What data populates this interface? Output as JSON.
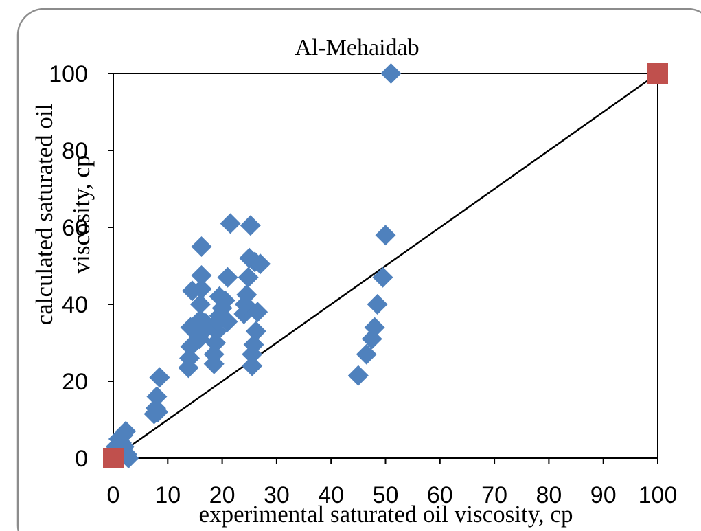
{
  "chart_data": {
    "type": "scatter",
    "title": "Al-Mehaidab",
    "xlabel": "experimental  saturated oil viscosity, cp",
    "ylabel_lines": [
      "calculated saturated oil",
      "viscosity, cp"
    ],
    "xlim": [
      0,
      100
    ],
    "ylim": [
      0,
      100
    ],
    "x_ticks": [
      0,
      10,
      20,
      30,
      40,
      50,
      60,
      70,
      80,
      90,
      100
    ],
    "y_ticks": [
      0,
      20,
      40,
      60,
      80,
      100
    ],
    "grid": false,
    "legend": "none",
    "series": [
      {
        "marker": "diamond",
        "color": "#4f81bd",
        "points": [
          [
            0.2,
            1
          ],
          [
            0.5,
            3
          ],
          [
            0.8,
            0.5
          ],
          [
            1.0,
            5
          ],
          [
            1.2,
            2
          ],
          [
            1.5,
            4
          ],
          [
            1.8,
            6
          ],
          [
            2.0,
            3
          ],
          [
            2.3,
            7
          ],
          [
            2.5,
            1
          ],
          [
            2.8,
            0
          ],
          [
            7.5,
            11.5
          ],
          [
            7.8,
            13
          ],
          [
            8.0,
            16
          ],
          [
            8.2,
            12
          ],
          [
            8.5,
            21
          ],
          [
            13.8,
            23.5
          ],
          [
            14.0,
            26
          ],
          [
            14.2,
            29
          ],
          [
            14.2,
            34
          ],
          [
            14.5,
            43.5
          ],
          [
            15.8,
            31
          ],
          [
            16.0,
            36
          ],
          [
            16.0,
            40
          ],
          [
            16.2,
            44
          ],
          [
            16.2,
            47.5
          ],
          [
            16.2,
            55
          ],
          [
            16.5,
            33
          ],
          [
            17.0,
            35
          ],
          [
            18.5,
            24.5
          ],
          [
            18.5,
            27
          ],
          [
            18.8,
            30
          ],
          [
            19.0,
            33
          ],
          [
            19.2,
            35.5
          ],
          [
            19.5,
            37
          ],
          [
            19.5,
            42
          ],
          [
            20.0,
            39
          ],
          [
            20.5,
            41
          ],
          [
            21.0,
            35.5
          ],
          [
            21.0,
            47
          ],
          [
            21.5,
            61
          ],
          [
            24.0,
            37.5
          ],
          [
            24.2,
            40
          ],
          [
            24.5,
            42.5
          ],
          [
            24.8,
            47
          ],
          [
            25.0,
            52
          ],
          [
            25.2,
            60.5
          ],
          [
            25.5,
            24
          ],
          [
            25.5,
            27
          ],
          [
            25.8,
            29.5
          ],
          [
            26.0,
            51
          ],
          [
            26.2,
            33
          ],
          [
            26.5,
            38
          ],
          [
            27.0,
            50.5
          ],
          [
            45.0,
            21.5
          ],
          [
            46.5,
            27
          ],
          [
            47.5,
            31
          ],
          [
            48.0,
            34
          ],
          [
            48.5,
            40
          ],
          [
            49.5,
            47
          ],
          [
            50.0,
            58
          ],
          [
            51.0,
            100
          ]
        ]
      },
      {
        "marker": "square",
        "color": "#c0504d",
        "points": [
          [
            0,
            0
          ],
          [
            100,
            100
          ]
        ]
      }
    ],
    "lines": [
      {
        "from": [
          0,
          0
        ],
        "to": [
          100,
          100
        ],
        "color": "#000000"
      }
    ]
  }
}
